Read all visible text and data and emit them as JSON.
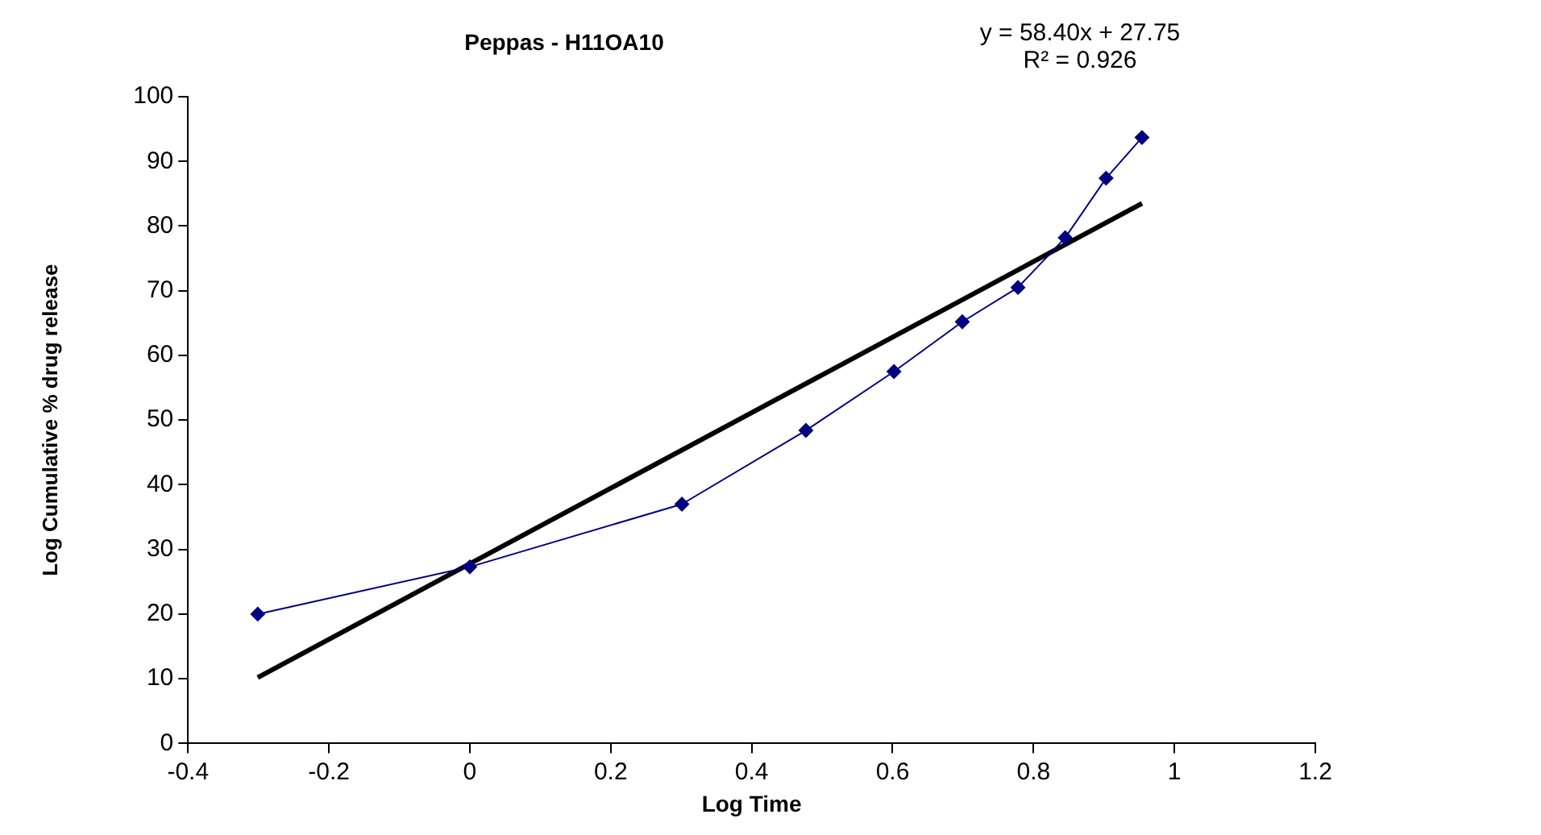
{
  "chart_data": {
    "type": "line",
    "title": "Peppas - H11OA10",
    "xlabel": "Log Time",
    "ylabel": "Log Cumulative % drug release",
    "annotations": [
      "y = 58.40x + 27.75",
      "R² = 0.926"
    ],
    "series": [
      {
        "color": "#000080",
        "x": [
          -0.301,
          0,
          0.301,
          0.477,
          0.602,
          0.699,
          0.778,
          0.845,
          0.903,
          0.954
        ],
        "values": [
          20,
          27.3,
          37,
          48.4,
          57.5,
          65.2,
          70.5,
          78.2,
          87.4,
          93.7
        ],
        "marker": "diamond"
      },
      {
        "color": "#000000",
        "x": [
          -0.301,
          0.954
        ],
        "values": [
          10.2,
          83.5
        ],
        "marker": "none"
      }
    ],
    "xlim": [
      -0.4,
      1.2
    ],
    "xticks": [
      -0.4,
      -0.2,
      0,
      0.2,
      0.4,
      0.6,
      0.8,
      1,
      1.2
    ],
    "ylim": [
      0,
      100
    ],
    "yticks": [
      0,
      10,
      20,
      30,
      40,
      50,
      60,
      70,
      80,
      90,
      100
    ],
    "grid": false,
    "legend": false
  }
}
